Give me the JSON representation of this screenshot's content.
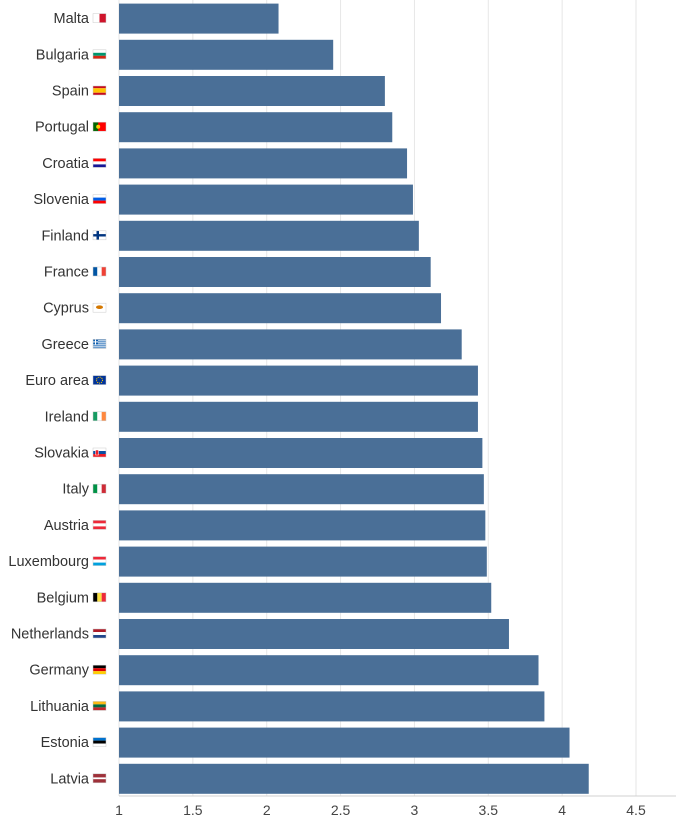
{
  "chart_data": {
    "type": "bar",
    "orientation": "horizontal",
    "title": "",
    "xlabel": "",
    "ylabel": "",
    "xlim": [
      1,
      4.5
    ],
    "x_ticks": [
      "1",
      "1.5",
      "2",
      "2.5",
      "3",
      "3.5",
      "4",
      "4.5"
    ],
    "grid": "vertical",
    "bar_color": "#4a6f97",
    "categories": [
      "Malta",
      "Bulgaria",
      "Spain",
      "Portugal",
      "Croatia",
      "Slovenia",
      "Finland",
      "France",
      "Cyprus",
      "Greece",
      "Euro area",
      "Ireland",
      "Slovakia",
      "Italy",
      "Austria",
      "Luxembourg",
      "Belgium",
      "Netherlands",
      "Germany",
      "Lithuania",
      "Estonia",
      "Latvia"
    ],
    "values": [
      2.08,
      2.45,
      2.8,
      2.85,
      2.95,
      2.99,
      3.03,
      3.11,
      3.18,
      3.32,
      3.43,
      3.43,
      3.46,
      3.47,
      3.48,
      3.49,
      3.52,
      3.64,
      3.84,
      3.88,
      4.05,
      4.18
    ],
    "flags": [
      "malta-flag-icon",
      "bulgaria-flag-icon",
      "spain-flag-icon",
      "portugal-flag-icon",
      "croatia-flag-icon",
      "slovenia-flag-icon",
      "finland-flag-icon",
      "france-flag-icon",
      "cyprus-flag-icon",
      "greece-flag-icon",
      "eu-flag-icon",
      "ireland-flag-icon",
      "slovakia-flag-icon",
      "italy-flag-icon",
      "austria-flag-icon",
      "luxembourg-flag-icon",
      "belgium-flag-icon",
      "netherlands-flag-icon",
      "germany-flag-icon",
      "lithuania-flag-icon",
      "estonia-flag-icon",
      "latvia-flag-icon"
    ]
  }
}
